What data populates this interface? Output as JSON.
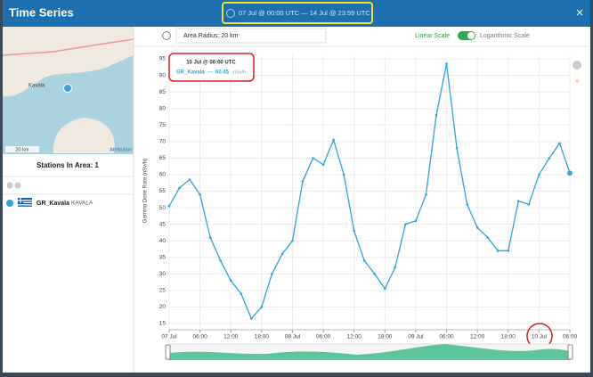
{
  "header": {
    "title": "Time Series",
    "range": "07 Jul @ 00:00 UTC — 14 Jul @ 23:59 UTC"
  },
  "map": {
    "labels": [
      "Kavala"
    ],
    "scale": "20 km",
    "attribution": "Attribution"
  },
  "stations": {
    "title": "Stations In Area: 1",
    "items": [
      {
        "name": "GR_Kavala",
        "location": "KAVALA"
      }
    ]
  },
  "toolbar": {
    "radius": "Area Radius: 20 km",
    "linear": "Linear Scale",
    "log": "Logarithmic Scale"
  },
  "chart_data": {
    "type": "line",
    "ylabel": "Gamma Dose Rate (nSv/h)",
    "x": [
      "07 Jul 00:00",
      "07 Jul 02:00",
      "07 Jul 04:00",
      "07 Jul 06:00",
      "07 Jul 08:00",
      "07 Jul 10:00",
      "07 Jul 12:00",
      "07 Jul 14:00",
      "07 Jul 16:00",
      "07 Jul 18:00",
      "07 Jul 20:00",
      "07 Jul 22:00",
      "08 Jul 00:00",
      "08 Jul 02:00",
      "08 Jul 04:00",
      "08 Jul 06:00",
      "08 Jul 08:00",
      "08 Jul 10:00",
      "08 Jul 12:00",
      "08 Jul 14:00",
      "08 Jul 16:00",
      "08 Jul 18:00",
      "08 Jul 20:00",
      "08 Jul 22:00",
      "09 Jul 00:00",
      "09 Jul 02:00",
      "09 Jul 04:00",
      "09 Jul 06:00",
      "09 Jul 08:00",
      "09 Jul 10:00",
      "09 Jul 12:00",
      "09 Jul 14:00",
      "09 Jul 16:00",
      "09 Jul 18:00",
      "09 Jul 20:00",
      "09 Jul 22:00",
      "10 Jul 00:00",
      "10 Jul 02:00",
      "10 Jul 04:00",
      "10 Jul 06:00"
    ],
    "series": [
      {
        "name": "GR_Kavala",
        "color": "#2aa5de",
        "values": [
          50.5,
          56,
          58.5,
          54,
          41,
          34,
          28,
          24,
          16.5,
          20,
          30,
          36,
          40,
          58,
          65,
          63,
          70.5,
          60,
          43,
          34,
          30,
          25.5,
          32,
          45,
          46,
          54,
          78,
          93.5,
          68,
          51,
          44,
          41,
          37,
          37,
          52,
          51,
          60,
          65,
          69.5,
          60.45
        ]
      }
    ],
    "ylim": [
      15,
      95
    ],
    "yticks": [
      15,
      20,
      25,
      30,
      35,
      40,
      45,
      50,
      55,
      60,
      65,
      70,
      75,
      80,
      85,
      90,
      95
    ],
    "xticks": [
      {
        "value": "07 Jul 00:00",
        "label": "07 Jul"
      },
      {
        "value": "07 Jul 06:00",
        "label": "06:00"
      },
      {
        "value": "07 Jul 12:00",
        "label": "12:00"
      },
      {
        "value": "07 Jul 18:00",
        "label": "18:00"
      },
      {
        "value": "08 Jul 00:00",
        "label": "08 Jul"
      },
      {
        "value": "08 Jul 06:00",
        "label": "06:00"
      },
      {
        "value": "08 Jul 12:00",
        "label": "12:00"
      },
      {
        "value": "08 Jul 18:00",
        "label": "18:00"
      },
      {
        "value": "09 Jul 00:00",
        "label": "09 Jul"
      },
      {
        "value": "09 Jul 06:00",
        "label": "06:00"
      },
      {
        "value": "09 Jul 12:00",
        "label": "12:00"
      },
      {
        "value": "09 Jul 18:00",
        "label": "18:00"
      },
      {
        "value": "10 Jul 00:00",
        "label": "10 Jul"
      },
      {
        "value": "10 Jul 06:00",
        "label": "06:00"
      }
    ],
    "grid": true,
    "tooltip": {
      "title": "10 Jul @ 06:00 UTC",
      "unit": "nSv/h"
    }
  }
}
